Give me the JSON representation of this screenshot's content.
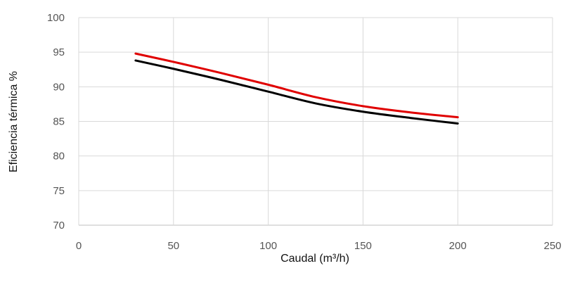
{
  "chart_data": {
    "type": "line",
    "title": "",
    "xlabel": "Caudal  (m³/h)",
    "ylabel": "Eficiencia térmica %",
    "xlim": [
      0,
      250
    ],
    "ylim": [
      70,
      100
    ],
    "xticks": [
      0,
      50,
      100,
      150,
      200,
      250
    ],
    "yticks": [
      70,
      75,
      80,
      85,
      90,
      95,
      100
    ],
    "grid": true,
    "legend": "none",
    "series": [
      {
        "color": "#e00000",
        "points": [
          {
            "x": 30,
            "y": 94.8
          },
          {
            "x": 50,
            "y": 93.6
          },
          {
            "x": 75,
            "y": 92.0
          },
          {
            "x": 100,
            "y": 90.3
          },
          {
            "x": 125,
            "y": 88.5
          },
          {
            "x": 150,
            "y": 87.2
          },
          {
            "x": 175,
            "y": 86.3
          },
          {
            "x": 200,
            "y": 85.6
          }
        ]
      },
      {
        "color": "#000000",
        "points": [
          {
            "x": 30,
            "y": 93.8
          },
          {
            "x": 50,
            "y": 92.6
          },
          {
            "x": 75,
            "y": 91.0
          },
          {
            "x": 100,
            "y": 89.3
          },
          {
            "x": 125,
            "y": 87.6
          },
          {
            "x": 150,
            "y": 86.4
          },
          {
            "x": 175,
            "y": 85.5
          },
          {
            "x": 200,
            "y": 84.7
          }
        ]
      }
    ]
  }
}
